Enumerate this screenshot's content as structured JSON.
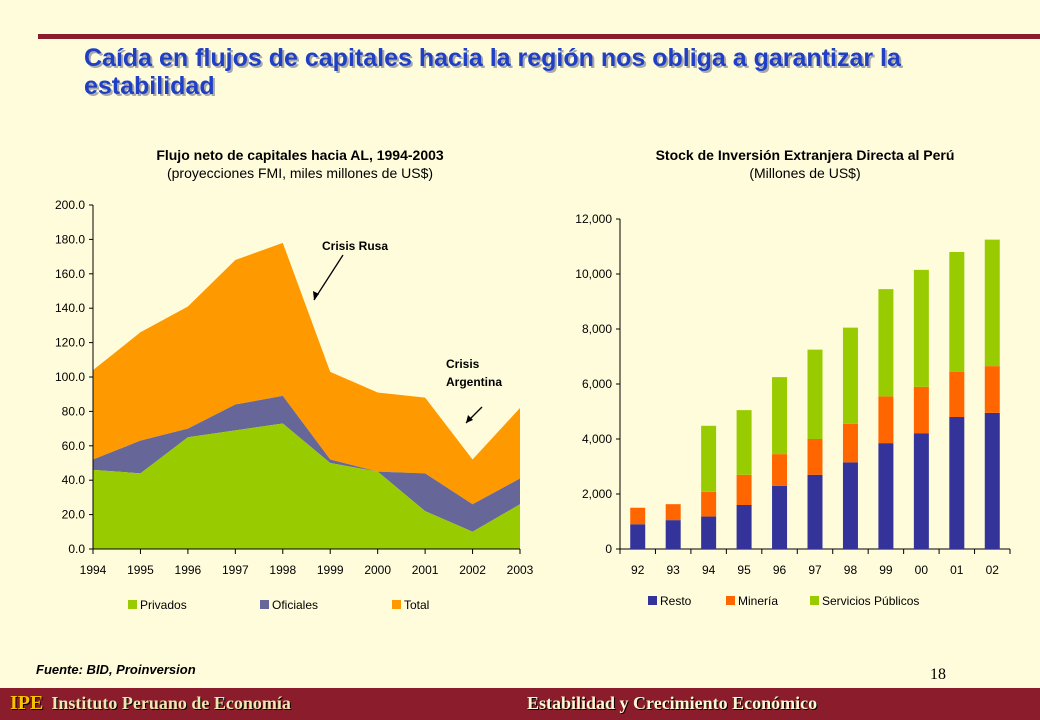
{
  "slide": {
    "title": "Caída en flujos de capitales hacia la región nos obliga a garantizar la estabilidad",
    "source": "Fuente: BID, Proinversion",
    "page_number": "18",
    "footer_logo": "IPE",
    "footer_org": "Instituto Peruano de Economía",
    "footer_subtitle": "Estabilidad y Crecimiento Económico",
    "colors": {
      "title": "#1f3fc4",
      "band": "#8b1c2c",
      "background": "#fffcdc"
    }
  },
  "chart_data": [
    {
      "type": "area",
      "title": "Flujo neto de capitales hacia AL, 1994-2003",
      "subtitle": "(proyecciones FMI, miles millones de US$)",
      "x": [
        "1994",
        "1995",
        "1996",
        "1997",
        "1998",
        "1999",
        "2000",
        "2001",
        "2002",
        "2003"
      ],
      "ylim": [
        0,
        200
      ],
      "yticks": [
        "0.0",
        "20.0",
        "40.0",
        "60.0",
        "80.0",
        "100.0",
        "120.0",
        "140.0",
        "160.0",
        "180.0",
        "200.0"
      ],
      "ytick_values": [
        0,
        20,
        40,
        60,
        80,
        100,
        120,
        140,
        160,
        180,
        200
      ],
      "series": [
        {
          "name": "Privados",
          "color": "#99cc00",
          "values": [
            46,
            44,
            65,
            69,
            73,
            50,
            45,
            22,
            10,
            26
          ]
        },
        {
          "name": "Oficiales",
          "color": "#666699",
          "values": [
            6,
            19,
            5,
            15,
            16,
            2,
            0,
            22,
            16,
            15
          ]
        },
        {
          "name": "Total",
          "color": "#ff9900",
          "values": [
            104,
            126,
            141,
            168,
            178,
            103,
            91,
            88,
            52,
            82
          ]
        }
      ],
      "annotations": [
        {
          "text": "Crisis Rusa"
        },
        {
          "text": "Crisis Argentina"
        }
      ],
      "legend_position": "bottom"
    },
    {
      "type": "bar",
      "stacked": true,
      "title": "Stock de Inversión Extranjera Directa al Perú",
      "subtitle": "(Millones de US$)",
      "categories": [
        "92",
        "93",
        "94",
        "95",
        "96",
        "97",
        "98",
        "99",
        "00",
        "01",
        "02"
      ],
      "ylim": [
        0,
        12000
      ],
      "yticks": [
        "0",
        "2,000",
        "4,000",
        "6,000",
        "8,000",
        "10,000",
        "12,000"
      ],
      "ytick_values": [
        0,
        2000,
        4000,
        6000,
        8000,
        10000,
        12000
      ],
      "series": [
        {
          "name": "Resto",
          "color": "#333399",
          "values": [
            900,
            1050,
            1180,
            1600,
            2300,
            2700,
            3150,
            3850,
            4200,
            4800,
            4950
          ]
        },
        {
          "name": "Minería",
          "color": "#ff6600",
          "values": [
            600,
            580,
            900,
            1100,
            1150,
            1300,
            1400,
            1700,
            1700,
            1650,
            1700
          ]
        },
        {
          "name": "Servicios Públicos",
          "color": "#99cc00",
          "values": [
            0,
            0,
            2400,
            2350,
            2800,
            3250,
            3500,
            3900,
            4250,
            4350,
            4600
          ]
        }
      ],
      "legend_position": "bottom"
    }
  ]
}
